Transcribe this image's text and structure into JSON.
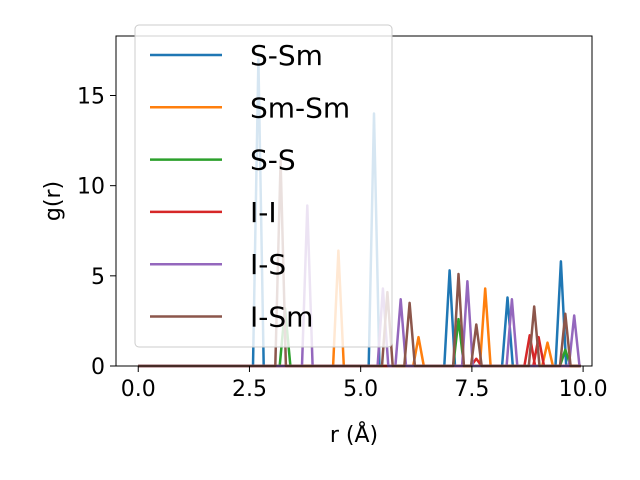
{
  "chart_data": {
    "type": "line",
    "xlabel": "r (Å)",
    "ylabel": "g(r)",
    "xlim": [
      -0.5,
      10.2
    ],
    "ylim": [
      0,
      18.3
    ],
    "xticks": [
      0.0,
      2.5,
      5.0,
      7.5,
      10.0
    ],
    "xtick_labels": [
      "0.0",
      "2.5",
      "5.0",
      "7.5",
      "10.0"
    ],
    "yticks": [
      0,
      5,
      10,
      15
    ],
    "ytick_labels": [
      "0",
      "5",
      "10",
      "15"
    ],
    "legend_position": "top-left",
    "grid": false,
    "series": [
      {
        "name": "S-Sm",
        "color": "#1f77b4",
        "peaks": [
          [
            2.7,
            17.0
          ],
          [
            5.3,
            14.0
          ],
          [
            7.0,
            5.3
          ],
          [
            8.3,
            3.8
          ],
          [
            9.5,
            5.8
          ]
        ]
      },
      {
        "name": "Sm-Sm",
        "color": "#ff7f0e",
        "peaks": [
          [
            4.5,
            6.4
          ],
          [
            6.3,
            1.6
          ],
          [
            7.8,
            4.3
          ],
          [
            9.2,
            1.3
          ]
        ]
      },
      {
        "name": "S-S",
        "color": "#2ca02c",
        "peaks": [
          [
            3.3,
            3.2
          ],
          [
            7.2,
            2.6
          ],
          [
            9.6,
            0.9
          ]
        ]
      },
      {
        "name": "I-I",
        "color": "#d62728",
        "peaks": [
          [
            7.6,
            0.4
          ],
          [
            8.8,
            1.7
          ],
          [
            9.0,
            1.6
          ]
        ]
      },
      {
        "name": "I-S",
        "color": "#9467bd",
        "peaks": [
          [
            3.8,
            8.9
          ],
          [
            5.5,
            4.3
          ],
          [
            5.9,
            3.7
          ],
          [
            7.4,
            4.7
          ],
          [
            8.4,
            3.7
          ],
          [
            9.8,
            2.8
          ]
        ]
      },
      {
        "name": "I-Sm",
        "color": "#8c564b",
        "peaks": [
          [
            3.2,
            11.4
          ],
          [
            5.6,
            4.1
          ],
          [
            6.1,
            3.5
          ],
          [
            7.2,
            5.1
          ],
          [
            7.6,
            2.3
          ],
          [
            8.9,
            3.3
          ],
          [
            9.6,
            2.9
          ]
        ]
      }
    ]
  }
}
